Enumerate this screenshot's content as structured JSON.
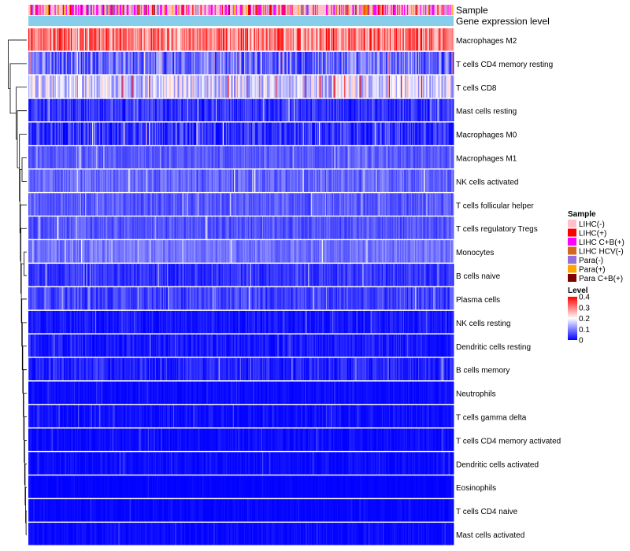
{
  "chart_data": {
    "type": "heatmap",
    "annotation_rows": [
      "Sample",
      "Gene expression level"
    ],
    "rows": [
      {
        "name": "Macrophages M2",
        "mean": 0.3,
        "spread": 0.09,
        "dendro_height": 0.95
      },
      {
        "name": "T cells CD4 memory resting",
        "mean": 0.085,
        "spread": 0.07,
        "dendro_height": 0.78
      },
      {
        "name": "T cells CD8",
        "mean": 0.17,
        "spread": 0.08,
        "dendro_height": 0.7
      },
      {
        "name": "Mast cells resting",
        "mean": 0.04,
        "spread": 0.04,
        "dendro_height": 0.45
      },
      {
        "name": "Macrophages M0",
        "mean": 0.035,
        "spread": 0.06,
        "dendro_height": 0.4
      },
      {
        "name": "Macrophages M1",
        "mean": 0.07,
        "spread": 0.025,
        "dendro_height": 0.28
      },
      {
        "name": "NK cells activated",
        "mean": 0.08,
        "spread": 0.035,
        "dendro_height": 0.2
      },
      {
        "name": "T cells follicular helper",
        "mean": 0.07,
        "spread": 0.03,
        "dendro_height": 0.22
      },
      {
        "name": "T cells regulatory  Tregs",
        "mean": 0.065,
        "spread": 0.03,
        "dendro_height": 0.18
      },
      {
        "name": "Monocytes",
        "mean": 0.09,
        "spread": 0.03,
        "dendro_height": 0.15
      },
      {
        "name": "B cells naive",
        "mean": 0.04,
        "spread": 0.03,
        "dendro_height": 0.12
      },
      {
        "name": "Plasma cells",
        "mean": 0.05,
        "spread": 0.035,
        "dendro_height": 0.14
      },
      {
        "name": "NK cells resting",
        "mean": 0.015,
        "spread": 0.025,
        "dendro_height": 0.1
      },
      {
        "name": "Dendritic cells resting",
        "mean": 0.02,
        "spread": 0.025,
        "dendro_height": 0.1
      },
      {
        "name": "B cells memory",
        "mean": 0.03,
        "spread": 0.03,
        "dendro_height": 0.08
      },
      {
        "name": "Neutrophils",
        "mean": 0.008,
        "spread": 0.012,
        "dendro_height": 0.06
      },
      {
        "name": "T cells gamma delta",
        "mean": 0.01,
        "spread": 0.02,
        "dendro_height": 0.05
      },
      {
        "name": "T cells CD4 memory activated",
        "mean": 0.008,
        "spread": 0.015,
        "dendro_height": 0.05
      },
      {
        "name": "Dendritic cells activated",
        "mean": 0.008,
        "spread": 0.015,
        "dendro_height": 0.04
      },
      {
        "name": "Eosinophils",
        "mean": 0.002,
        "spread": 0.006,
        "dendro_height": 0.03
      },
      {
        "name": "T cells CD4 naive",
        "mean": 0.004,
        "spread": 0.01,
        "dendro_height": 0.03
      },
      {
        "name": "Mast cells activated",
        "mean": 0.006,
        "spread": 0.015,
        "dendro_height": 0.03
      }
    ],
    "n_columns": 420,
    "sample_legend": {
      "title": "Sample",
      "entries": [
        {
          "label": "LIHC(-)",
          "color": "#FFC0CB"
        },
        {
          "label": "LIHC(+)",
          "color": "#FF0000"
        },
        {
          "label": "LIHC C+B(+)",
          "color": "#FF00FF"
        },
        {
          "label": "LIHC HCV(-)",
          "color": "#D2691E"
        },
        {
          "label": "Para(-)",
          "color": "#9370DB"
        },
        {
          "label": "Para(+)",
          "color": "#FFA500"
        },
        {
          "label": "Para C+B(+)",
          "color": "#800000"
        }
      ],
      "weights": [
        0.5,
        0.08,
        0.22,
        0.06,
        0.07,
        0.05,
        0.02
      ]
    },
    "gene_expression_color": "#87CEEB",
    "level_legend": {
      "title": "Level",
      "min": 0,
      "max": 0.4,
      "ticks": [
        "0.4",
        "0.3",
        "0.2",
        "0.1",
        "0"
      ],
      "colors": [
        "#0000FF",
        "#FFFFFF",
        "#FF0000"
      ]
    }
  }
}
